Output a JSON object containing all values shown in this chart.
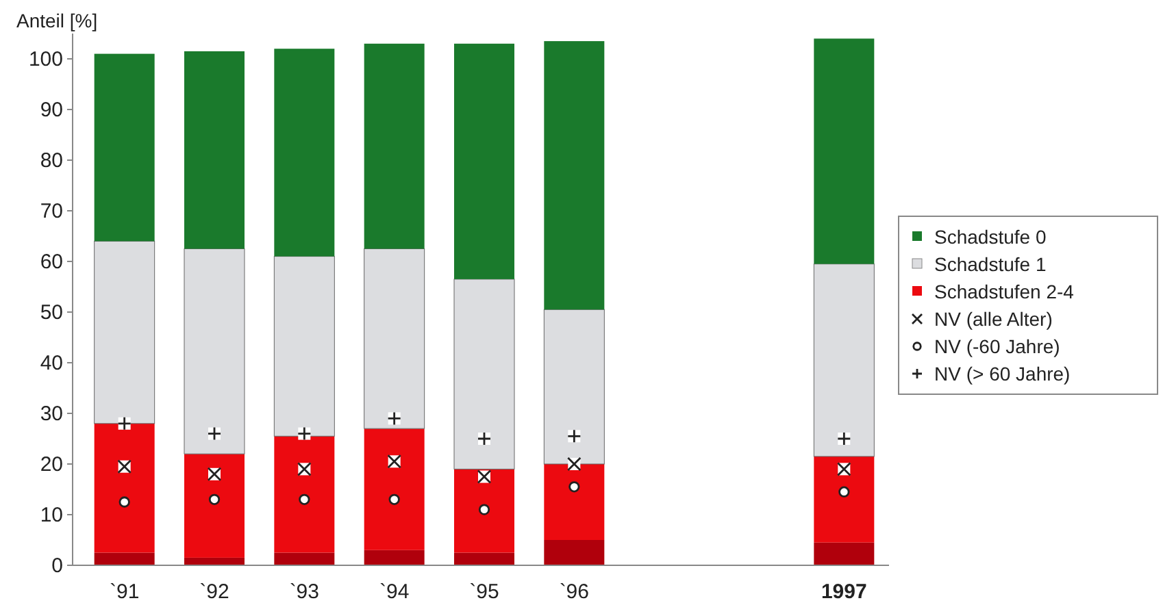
{
  "chart_data": {
    "type": "bar",
    "stacked": true,
    "ylabel": "Anteil [%]",
    "categories": [
      "`91",
      "`92",
      "`93",
      "`94",
      "`95",
      "`96",
      null,
      null,
      "1997"
    ],
    "ylim": [
      0,
      105
    ],
    "yticks": [
      0,
      10,
      20,
      30,
      40,
      50,
      60,
      70,
      80,
      90,
      100
    ],
    "grid": false,
    "legend": "right",
    "series": [
      {
        "color": "#b0000c",
        "values": [
          2.5,
          1.5,
          2.5,
          3,
          2.5,
          5,
          null,
          null,
          4.5
        ]
      },
      {
        "name": "Schadstufen 2-4",
        "color": "#ec0a10",
        "values": [
          25.5,
          20.5,
          23,
          24,
          16.5,
          15,
          null,
          null,
          17
        ]
      },
      {
        "name": "Schadstufe 1",
        "color": "#dcdde0",
        "values": [
          36,
          40.5,
          35.5,
          35.5,
          37.5,
          30.5,
          null,
          null,
          38
        ]
      },
      {
        "name": "Schadstufe 0",
        "color": "#1a7a2c",
        "values": [
          37,
          39,
          41,
          40.5,
          46.5,
          53,
          null,
          null,
          44.5
        ]
      },
      {
        "name": "NV (alle Alter)",
        "type": "scatter",
        "marker": "x",
        "color": "#222222",
        "values": [
          19.5,
          18,
          19,
          20.5,
          17.5,
          20,
          null,
          null,
          19
        ]
      },
      {
        "name": "NV (-60 Jahre)",
        "type": "scatter",
        "marker": "circle",
        "color": "#222222",
        "values": [
          12.5,
          13,
          13,
          13,
          11,
          15.5,
          null,
          null,
          14.5
        ]
      },
      {
        "name": "NV (> 60 Jahre)",
        "type": "scatter",
        "marker": "cross",
        "color": "#222222",
        "values": [
          28,
          26,
          26,
          29,
          25,
          25.5,
          null,
          null,
          25
        ]
      }
    ]
  }
}
